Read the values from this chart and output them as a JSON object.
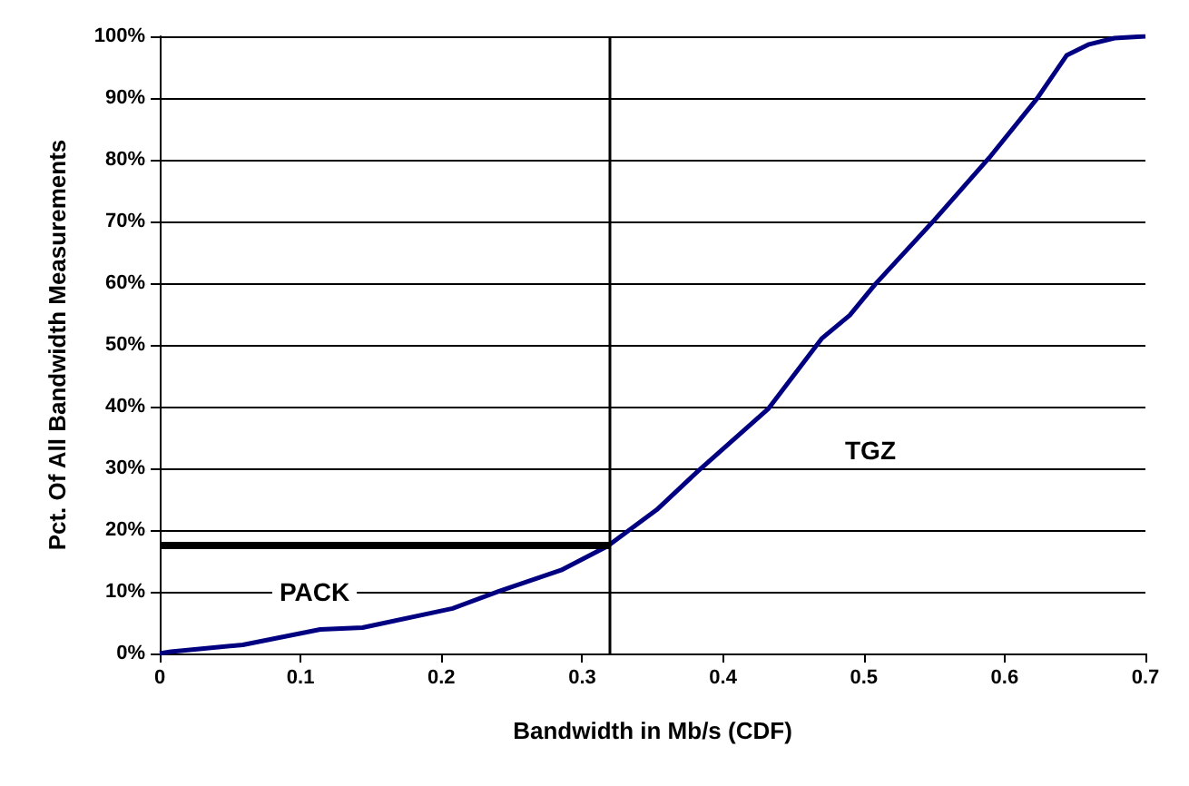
{
  "chart_data": {
    "type": "line",
    "xlabel": "Bandwidth in Mb/s (CDF)",
    "ylabel": "Pct. Of All Bandwidth Measurements",
    "xlim": [
      0,
      0.7
    ],
    "xticks": [
      0,
      0.1,
      0.2,
      0.3,
      0.4,
      0.5,
      0.6,
      0.7
    ],
    "ylim": [
      0,
      100
    ],
    "yticks": [
      {
        "value": 0,
        "label": "0%"
      },
      {
        "value": 10,
        "label": "10%"
      },
      {
        "value": 20,
        "label": "20%"
      },
      {
        "value": 30,
        "label": "30%"
      },
      {
        "value": 40,
        "label": "40%"
      },
      {
        "value": 50,
        "label": "50%"
      },
      {
        "value": 60,
        "label": "60%"
      },
      {
        "value": 70,
        "label": "70%"
      },
      {
        "value": 80,
        "label": "80%"
      },
      {
        "value": 90,
        "label": "90%"
      },
      {
        "value": 100,
        "label": "100%"
      }
    ],
    "grid": "y",
    "marker": "none",
    "line_style": "solid",
    "series": [
      {
        "color": "#000080",
        "x": [
          0,
          0.008,
          0.059,
          0.114,
          0.144,
          0.208,
          0.241,
          0.285,
          0.318,
          0.353,
          0.382,
          0.432,
          0.47,
          0.49,
          0.508,
          0.55,
          0.589,
          0.623,
          0.644,
          0.66,
          0.678,
          0.7
        ],
        "values": [
          0,
          0.3,
          1.4,
          3.9,
          4.2,
          7.3,
          10.1,
          13.5,
          17.4,
          23.3,
          29.5,
          39.6,
          51,
          54.8,
          59.8,
          70.2,
          80.3,
          89.9,
          96.9,
          98.7,
          99.7,
          100
        ]
      },
      {
        "color": "#000000",
        "x": [
          0,
          0.32
        ],
        "values": [
          17.5,
          17.5
        ]
      }
    ],
    "ref_lines": [
      {
        "axis": "x",
        "value": 0.32,
        "color": "#000000"
      }
    ],
    "annotations": [
      "PACK",
      "TGZ"
    ]
  }
}
